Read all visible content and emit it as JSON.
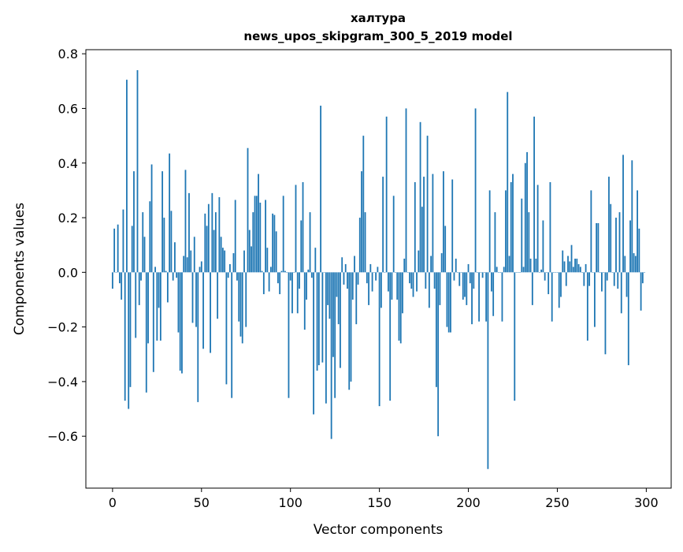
{
  "chart_data": {
    "type": "bar",
    "title_line1": "халтура",
    "title_line2": "news_upos_skipgram_300_5_2019 model",
    "xlabel": "Vector components",
    "ylabel": "Components values",
    "xlim": [
      -15,
      314
    ],
    "ylim": [
      -0.79,
      0.815
    ],
    "xticks": [
      0,
      50,
      100,
      150,
      200,
      250,
      300
    ],
    "yticks": [
      -0.6,
      -0.4,
      -0.2,
      0.0,
      0.2,
      0.4,
      0.6,
      0.8
    ],
    "ytick_labels": [
      "−0.6",
      "−0.4",
      "−0.2",
      "0.0",
      "0.2",
      "0.4",
      "0.6",
      "0.8"
    ],
    "grid": false,
    "bar_color": "#1f77b4",
    "values": [
      -0.06,
      0.16,
      0.0,
      0.175,
      -0.04,
      -0.1,
      0.23,
      -0.47,
      0.705,
      -0.5,
      -0.42,
      0.17,
      0.37,
      -0.24,
      0.74,
      -0.12,
      -0.03,
      0.22,
      0.13,
      -0.44,
      -0.26,
      0.26,
      0.395,
      -0.365,
      0.02,
      -0.25,
      -0.13,
      -0.25,
      0.37,
      0.2,
      0.005,
      -0.11,
      0.435,
      0.225,
      -0.03,
      0.11,
      -0.02,
      -0.22,
      -0.36,
      -0.37,
      0.06,
      0.375,
      0.055,
      0.29,
      0.08,
      -0.185,
      0.13,
      -0.2,
      -0.475,
      0.02,
      0.04,
      -0.28,
      0.215,
      0.17,
      0.25,
      -0.295,
      0.29,
      0.155,
      0.22,
      -0.17,
      0.275,
      0.13,
      0.09,
      0.08,
      -0.41,
      -0.02,
      0.03,
      -0.46,
      0.07,
      0.265,
      -0.03,
      -0.18,
      -0.235,
      -0.26,
      0.08,
      -0.2,
      0.455,
      0.155,
      0.095,
      0.22,
      0.28,
      0.28,
      0.36,
      0.255,
      0.005,
      -0.08,
      0.265,
      0.09,
      -0.07,
      0.02,
      0.215,
      0.21,
      0.15,
      -0.04,
      -0.08,
      0.005,
      0.28,
      0.005,
      0.0,
      -0.46,
      -0.03,
      -0.15,
      0.0,
      0.32,
      -0.15,
      -0.06,
      0.19,
      0.33,
      -0.21,
      -0.1,
      0.01,
      0.22,
      -0.02,
      -0.52,
      0.09,
      -0.36,
      -0.34,
      0.61,
      -0.33,
      0.0,
      -0.48,
      -0.12,
      -0.17,
      -0.61,
      -0.31,
      -0.46,
      -0.09,
      -0.19,
      -0.35,
      0.055,
      -0.045,
      0.03,
      -0.06,
      -0.43,
      -0.4,
      -0.1,
      0.06,
      -0.19,
      -0.045,
      0.2,
      0.37,
      0.5,
      0.22,
      -0.04,
      -0.12,
      0.03,
      -0.07,
      0.0,
      -0.03,
      0.02,
      -0.49,
      -0.13,
      0.35,
      0.0,
      0.57,
      -0.07,
      -0.47,
      -0.1,
      0.28,
      0.0,
      -0.1,
      -0.25,
      -0.26,
      -0.15,
      0.05,
      0.6,
      0.0,
      -0.04,
      -0.06,
      -0.09,
      0.33,
      -0.07,
      0.08,
      0.55,
      0.24,
      0.35,
      -0.06,
      0.5,
      -0.13,
      0.06,
      0.36,
      -0.06,
      -0.42,
      -0.6,
      -0.12,
      0.07,
      0.37,
      0.17,
      -0.2,
      -0.22,
      -0.22,
      0.34,
      -0.03,
      0.05,
      0.0,
      -0.05,
      0.0,
      -0.1,
      -0.09,
      -0.12,
      0.03,
      -0.04,
      -0.19,
      -0.06,
      0.6,
      0.0,
      -0.18,
      0.0,
      -0.02,
      0.0,
      -0.18,
      -0.72,
      0.3,
      -0.07,
      -0.16,
      0.22,
      0.02,
      0.0,
      0.0,
      -0.18,
      0.02,
      0.3,
      0.66,
      0.06,
      0.33,
      0.36,
      -0.47,
      0.0,
      0.0,
      0.0,
      0.27,
      0.02,
      0.4,
      0.44,
      0.22,
      0.05,
      -0.12,
      0.57,
      0.05,
      0.32,
      0.0,
      0.01,
      0.19,
      -0.03,
      0.0,
      -0.08,
      0.33,
      -0.18,
      0.0,
      0.0,
      0.0,
      -0.13,
      -0.09,
      0.08,
      0.04,
      -0.05,
      0.06,
      0.04,
      0.1,
      0.02,
      0.05,
      0.05,
      0.03,
      0.02,
      0.0,
      -0.05,
      0.03,
      -0.25,
      -0.05,
      0.3,
      0.0,
      -0.2,
      0.18,
      0.18,
      0.0,
      -0.07,
      0.0,
      -0.3,
      -0.03,
      0.35,
      0.25,
      0.0,
      -0.05,
      0.2,
      -0.06,
      0.22,
      -0.15,
      0.43,
      0.06,
      -0.09,
      -0.34,
      0.19,
      0.41,
      0.07,
      0.06,
      0.3,
      0.16,
      -0.14,
      -0.04,
      0.0
    ]
  }
}
